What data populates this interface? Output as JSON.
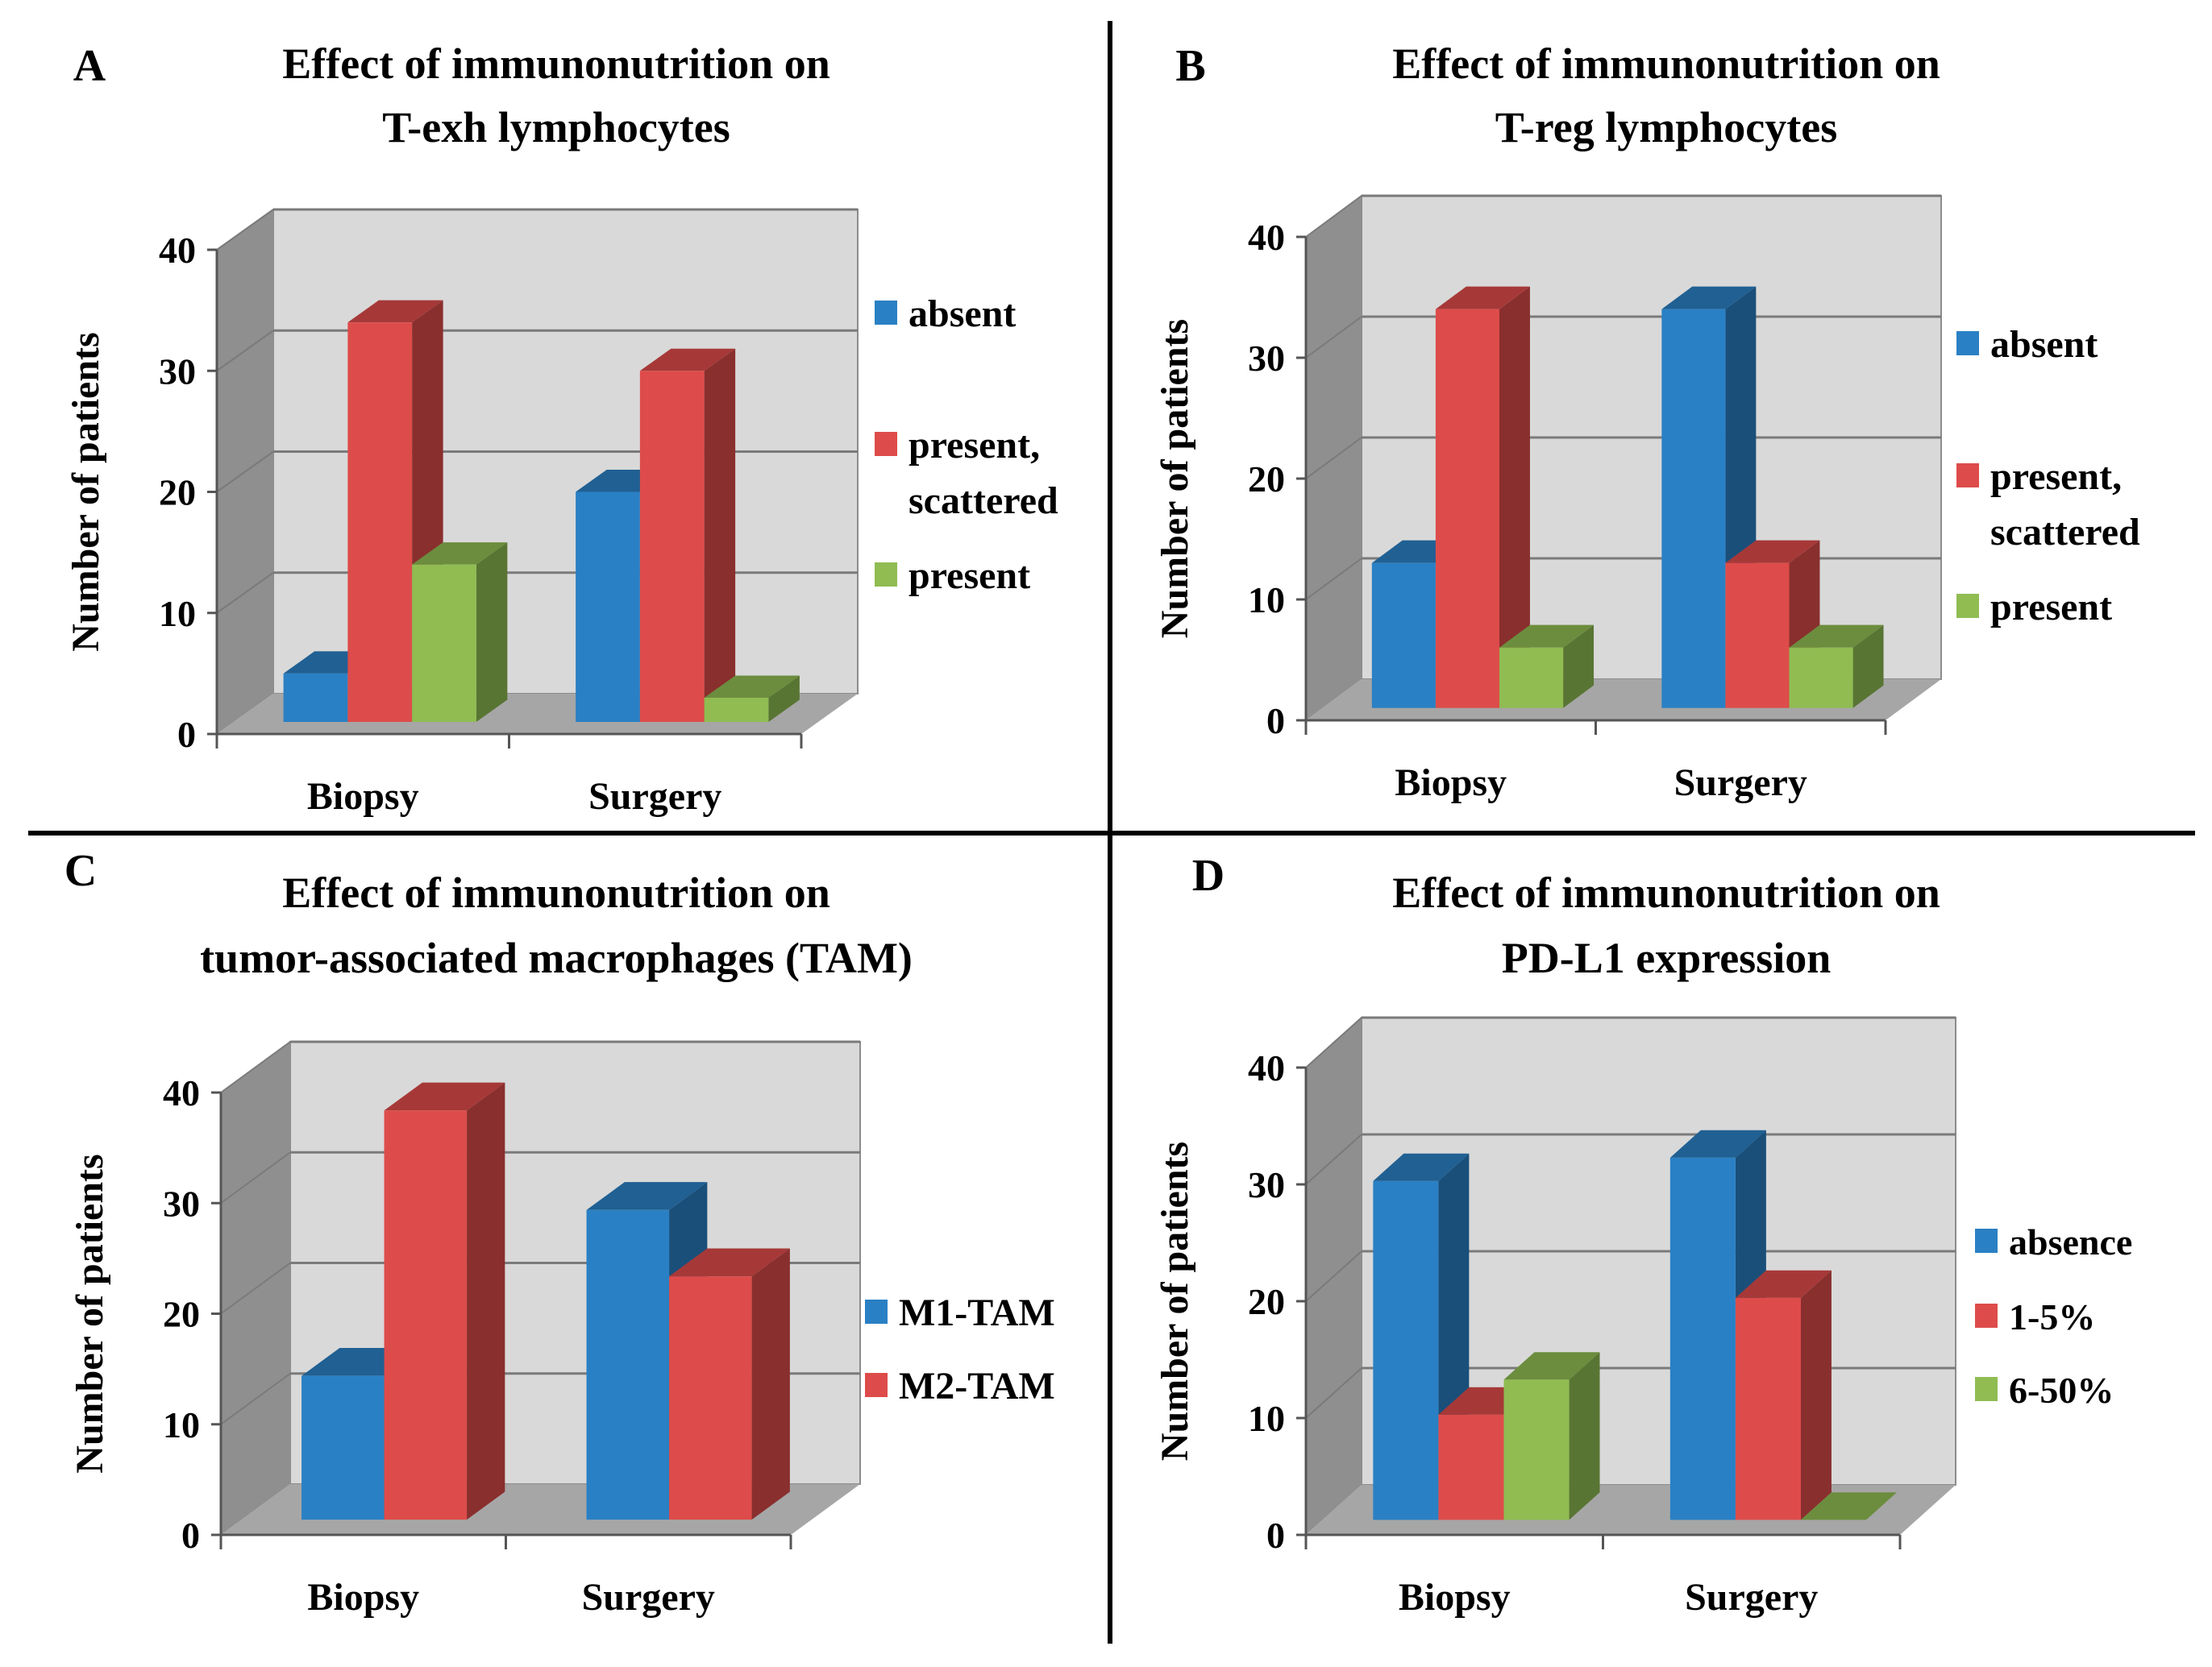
{
  "chart_data": [
    {
      "type": "bar",
      "panel_label": "A",
      "title_lines": [
        "Effect of immunonutrition  on",
        "T-exh lymphocytes"
      ],
      "ylabel": "Number of patients",
      "ylim": [
        0,
        40
      ],
      "yticks": [
        "0",
        "10",
        "20",
        "30",
        "40"
      ],
      "categories": [
        "Biopsy",
        "Surgery"
      ],
      "series": [
        {
          "name": "absent",
          "color": "#2a80c4",
          "values": [
            4,
            19
          ]
        },
        {
          "name_lines": [
            "present,",
            "scattered"
          ],
          "name": "present, scattered",
          "color": "#dd4c4a",
          "values": [
            33,
            29
          ]
        },
        {
          "name": "present",
          "color": "#90bc52",
          "values": [
            13,
            2
          ]
        }
      ],
      "grid": true,
      "legend": "right"
    },
    {
      "type": "bar",
      "panel_label": "B",
      "title_lines": [
        "Effect of immunonutrition  on",
        "T-reg lymphocytes"
      ],
      "ylabel": "Number of patients",
      "ylim": [
        0,
        40
      ],
      "yticks": [
        "0",
        "10",
        "20",
        "30",
        "40"
      ],
      "categories": [
        "Biopsy",
        "Surgery"
      ],
      "series": [
        {
          "name": "absent",
          "color": "#2a80c4",
          "values": [
            12,
            33
          ]
        },
        {
          "name_lines": [
            "present,",
            "scattered"
          ],
          "name": "present, scattered",
          "color": "#dd4c4a",
          "values": [
            33,
            12
          ]
        },
        {
          "name": "present",
          "color": "#90bc52",
          "values": [
            5,
            5
          ]
        }
      ],
      "grid": true,
      "legend": "right"
    },
    {
      "type": "bar",
      "panel_label": "C",
      "title_lines": [
        "Effect of immunonutrition  on",
        "tumor-associated macrophages (TAM)"
      ],
      "ylabel": "Number of patients",
      "ylim": [
        0,
        40
      ],
      "yticks": [
        "0",
        "10",
        "20",
        "30",
        "40"
      ],
      "categories": [
        "Biopsy",
        "Surgery"
      ],
      "series": [
        {
          "name": "M1-TAM",
          "color": "#2a80c4",
          "values": [
            13,
            28
          ]
        },
        {
          "name": "M2-TAM",
          "color": "#dd4c4a",
          "values": [
            37,
            22
          ]
        }
      ],
      "grid": true,
      "legend": "right"
    },
    {
      "type": "bar",
      "panel_label": "D",
      "title_lines": [
        "Effect of immunonutrition  on",
        "PD-L1 expression"
      ],
      "ylabel": "Number of patients",
      "ylim": [
        0,
        40
      ],
      "yticks": [
        "0",
        "10",
        "20",
        "30",
        "40"
      ],
      "categories": [
        "Biopsy",
        "Surgery"
      ],
      "series": [
        {
          "name": "absence",
          "color": "#2a80c4",
          "values": [
            29,
            31
          ]
        },
        {
          "name": "1-5%",
          "color": "#dd4c4a",
          "values": [
            9,
            19
          ]
        },
        {
          "name": "6-50%",
          "color": "#90bc52",
          "values": [
            12,
            0
          ]
        }
      ],
      "grid": true,
      "legend": "right"
    }
  ]
}
